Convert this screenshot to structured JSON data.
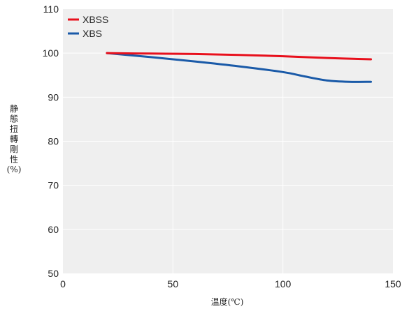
{
  "chart_data": {
    "type": "line",
    "title": "",
    "xlabel": "温度(℃)",
    "ylabel_lines": [
      "静",
      "態",
      "扭",
      "轉",
      "剛",
      "性",
      "(%)"
    ],
    "xlim": [
      0,
      150
    ],
    "ylim": [
      50,
      110
    ],
    "xticks": [
      "0",
      "50",
      "100",
      "150"
    ],
    "yticks": [
      "50",
      "60",
      "70",
      "80",
      "90",
      "100",
      "110"
    ],
    "grid": true,
    "legend_position": "top-left",
    "series": [
      {
        "name": "XBSS",
        "color": "#e8101c",
        "x": [
          20,
          40,
          60,
          80,
          100,
          120,
          140
        ],
        "y": [
          100,
          99.9,
          99.8,
          99.6,
          99.3,
          98.9,
          98.6
        ]
      },
      {
        "name": "XBS",
        "color": "#1a5aa8",
        "x": [
          20,
          40,
          60,
          80,
          100,
          110,
          120,
          130,
          140
        ],
        "y": [
          100,
          99.1,
          98.1,
          97.0,
          95.7,
          94.7,
          93.8,
          93.5,
          93.5
        ]
      }
    ]
  }
}
